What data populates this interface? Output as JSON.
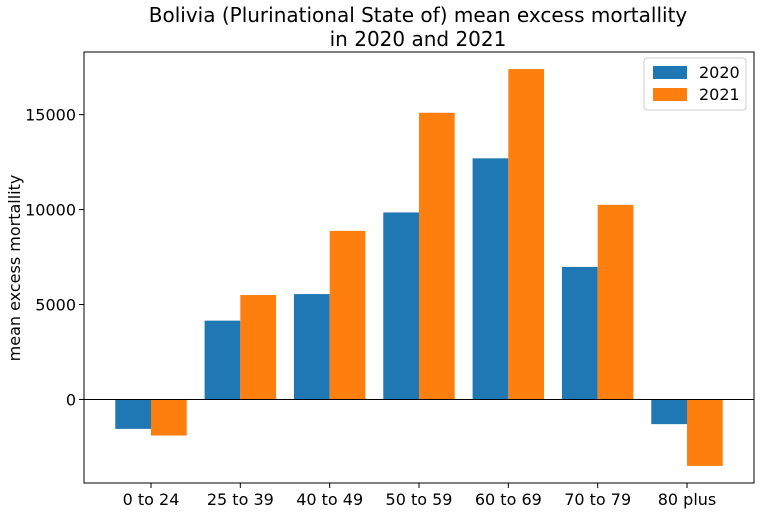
{
  "chart_data": {
    "type": "bar",
    "title_lines": [
      "Bolivia (Plurinational State of) mean excess mortallity",
      "in 2020 and 2021"
    ],
    "xlabel": "",
    "ylabel": "mean excess mortallity",
    "categories": [
      "0 to 24",
      "25 to 39",
      "40 to 49",
      "50 to 59",
      "60 to 69",
      "70 to 79",
      "80 plus"
    ],
    "series": [
      {
        "name": "2020",
        "color": "#1f77b4",
        "values": [
          -1550,
          4150,
          5550,
          9850,
          12700,
          6980,
          -1300
        ]
      },
      {
        "name": "2021",
        "color": "#ff7f0e",
        "values": [
          -1900,
          5500,
          8880,
          15100,
          17400,
          10250,
          -3500
        ]
      }
    ],
    "ylim": [
      -4400,
      18300
    ],
    "yticks": [
      0,
      5000,
      10000,
      15000
    ],
    "zero_line": true,
    "grid": false,
    "legend_position": "top-right"
  }
}
